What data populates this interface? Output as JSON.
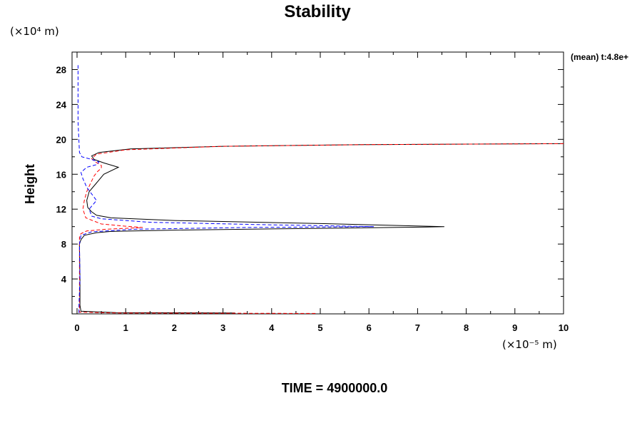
{
  "chart_data": {
    "type": "line",
    "title": "Stability",
    "ylabel": "Height",
    "y_unit": "(×10⁴ m)",
    "x_unit": "(×10⁻⁵ m)",
    "annotation": "(mean) t:4.8e+",
    "footer": "TIME = 4900000.0",
    "xlim": [
      0,
      10
    ],
    "ylim": [
      0,
      30
    ],
    "x_ticks": [
      0,
      1,
      2,
      3,
      4,
      5,
      6,
      7,
      8,
      9,
      10
    ],
    "y_ticks": [
      4,
      8,
      12,
      16,
      20,
      24,
      28
    ],
    "grid": false,
    "colors": {
      "series_1": "#000000",
      "series_2": "#ff0000",
      "series_3": "#0000ff"
    },
    "series": [
      {
        "style": "solid",
        "color": "#000000",
        "x": [
          3.25,
          0.8,
          0.08,
          0.06,
          0.06,
          0.05,
          0.05,
          0.08,
          0.15,
          0.4,
          0.7,
          2.0,
          5.0,
          7.2,
          7.55,
          5.0,
          2.0,
          0.7,
          0.4,
          0.3,
          0.22,
          0.2,
          0.25,
          0.4,
          0.55,
          0.85,
          0.55,
          0.35,
          0.3,
          0.45,
          1.1,
          3.0,
          6.0,
          10.0
        ],
        "y": [
          0.1,
          0.15,
          0.3,
          1.0,
          4.0,
          7.5,
          8.0,
          8.5,
          9.0,
          9.3,
          9.45,
          9.6,
          9.8,
          9.95,
          10.0,
          10.35,
          10.7,
          11.0,
          11.3,
          11.7,
          12.2,
          13.0,
          14.0,
          15.0,
          16.0,
          16.8,
          17.3,
          17.7,
          18.1,
          18.5,
          18.9,
          19.2,
          19.4,
          19.5
        ]
      },
      {
        "style": "dashed",
        "color": "#ff0000",
        "x": [
          4.9,
          0.8,
          0.05,
          0.05,
          0.08,
          0.2,
          0.6,
          1.0,
          1.35,
          1.0,
          0.5,
          0.18,
          0.12,
          0.15,
          0.2,
          0.28,
          0.35,
          0.42,
          0.5,
          0.5,
          0.38,
          0.3,
          0.4,
          1.0,
          3.0,
          6.0,
          10.0
        ],
        "y": [
          0.05,
          0.1,
          0.2,
          8.8,
          9.2,
          9.5,
          9.7,
          9.8,
          9.9,
          10.05,
          10.3,
          11.0,
          12.0,
          13.0,
          14.0,
          15.0,
          15.8,
          16.3,
          16.7,
          17.0,
          17.4,
          17.8,
          18.3,
          18.8,
          19.2,
          19.4,
          19.5
        ]
      },
      {
        "style": "dashed",
        "color": "#0000ff",
        "x": [
          0.04,
          0.04,
          0.06,
          0.05,
          0.08,
          0.3,
          1.2,
          3.5,
          6.1,
          4.0,
          1.5,
          0.5,
          0.3,
          0.25,
          0.4,
          0.2,
          0.12,
          0.08,
          0.2,
          0.4,
          0.45,
          0.3,
          0.1,
          0.05,
          0.02,
          0.02
        ],
        "y": [
          0.1,
          1.0,
          4.0,
          8.0,
          9.0,
          9.4,
          9.7,
          9.9,
          10.0,
          10.2,
          10.5,
          10.9,
          11.2,
          12.0,
          13.0,
          14.5,
          15.5,
          16.2,
          16.8,
          17.1,
          17.4,
          17.7,
          18.0,
          18.5,
          22.0,
          28.5
        ]
      }
    ]
  }
}
